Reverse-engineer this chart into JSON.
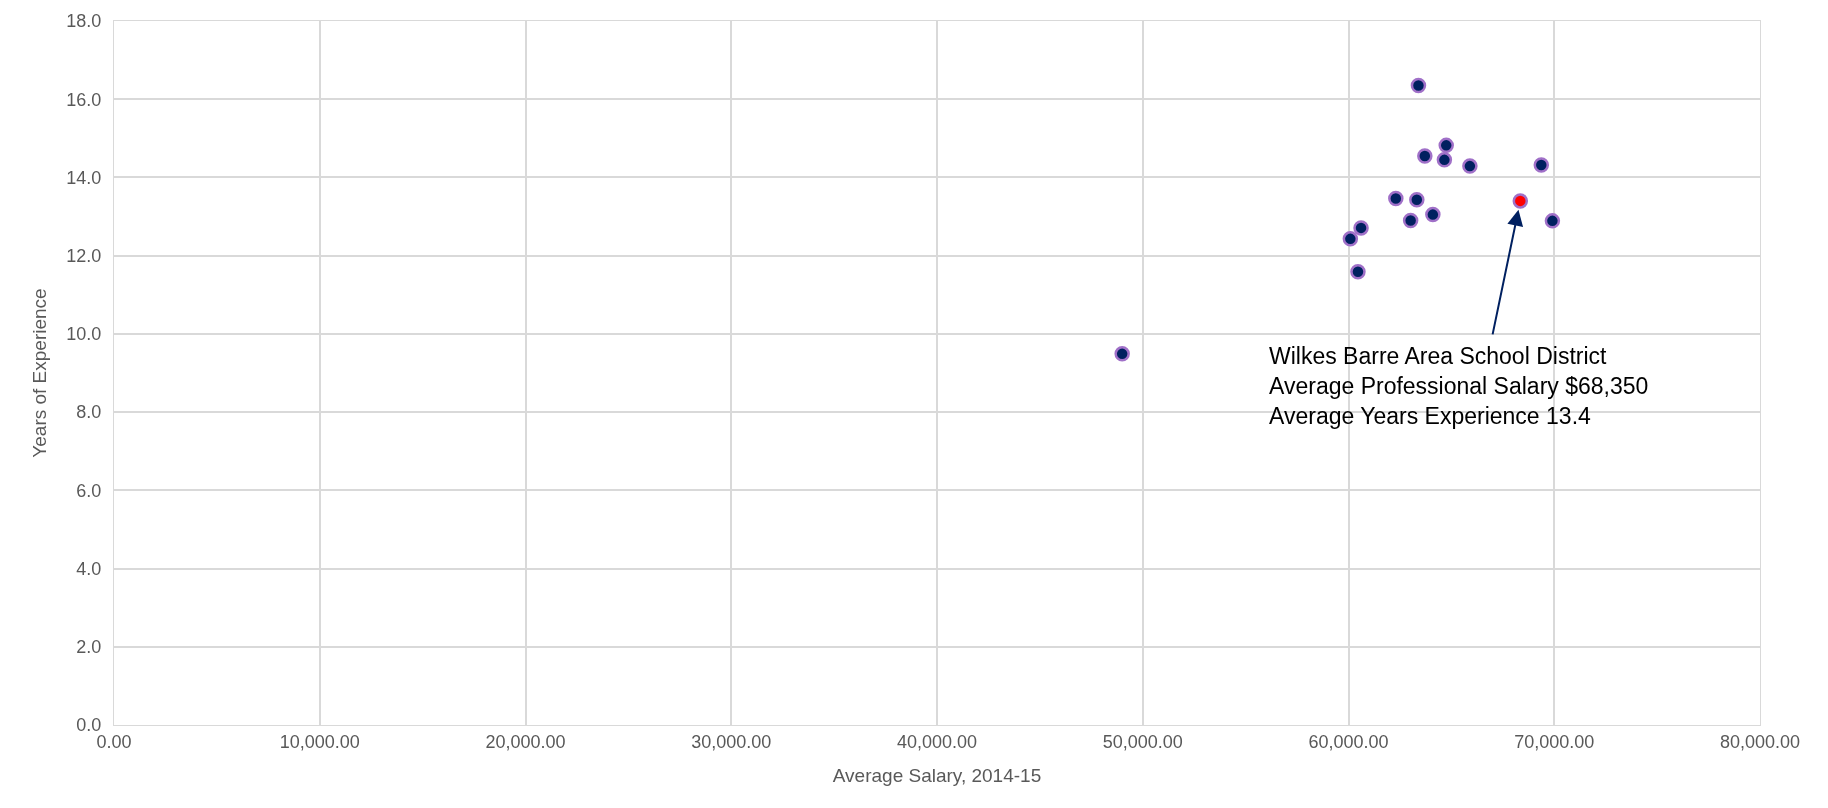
{
  "chart_data": {
    "type": "scatter",
    "xlabel": "Average Salary, 2014-15",
    "ylabel": "Years of Experience",
    "x": [
      49000,
      63400,
      64750,
      63710,
      64660,
      65900,
      69370,
      62300,
      63320,
      68350,
      64100,
      63020,
      69910,
      60610,
      60090,
      60460
    ],
    "values": [
      9.49,
      16.35,
      14.82,
      14.55,
      14.45,
      14.29,
      14.32,
      13.46,
      13.43,
      13.4,
      13.05,
      12.9,
      12.89,
      12.71,
      12.43,
      11.59
    ],
    "colors": [
      "#002060",
      "#002060",
      "#002060",
      "#002060",
      "#002060",
      "#002060",
      "#002060",
      "#002060",
      "#002060",
      "#ff0000",
      "#002060",
      "#002060",
      "#002060",
      "#002060",
      "#002060",
      "#002060"
    ],
    "marker": "circle",
    "grid": true,
    "xlim": [
      0,
      80000
    ],
    "xticks": [
      {
        "value": 0,
        "label": "0.00"
      },
      {
        "value": 10000,
        "label": "10,000.00"
      },
      {
        "value": 20000,
        "label": "20,000.00"
      },
      {
        "value": 30000,
        "label": "30,000.00"
      },
      {
        "value": 40000,
        "label": "40,000.00"
      },
      {
        "value": 50000,
        "label": "50,000.00"
      },
      {
        "value": 60000,
        "label": "60,000.00"
      },
      {
        "value": 70000,
        "label": "70,000.00"
      },
      {
        "value": 80000,
        "label": "80,000.00"
      }
    ],
    "ylim": [
      0,
      18
    ],
    "yticks": [
      {
        "value": 0,
        "label": "0.0"
      },
      {
        "value": 2,
        "label": "2.0"
      },
      {
        "value": 4,
        "label": "4.0"
      },
      {
        "value": 6,
        "label": "6.0"
      },
      {
        "value": 8,
        "label": "8.0"
      },
      {
        "value": 10,
        "label": "10.0"
      },
      {
        "value": 12,
        "label": "12.0"
      },
      {
        "value": 14,
        "label": "14.0"
      },
      {
        "value": 16,
        "label": "16.0"
      },
      {
        "value": 18,
        "label": "18.0"
      }
    ],
    "annotations": [
      {
        "text": "Wilkes Barre Area School District\nAverage Professional Salary $68,350\nAverage Years Experience 13.4",
        "x": 68350,
        "y": 13.4
      }
    ]
  }
}
